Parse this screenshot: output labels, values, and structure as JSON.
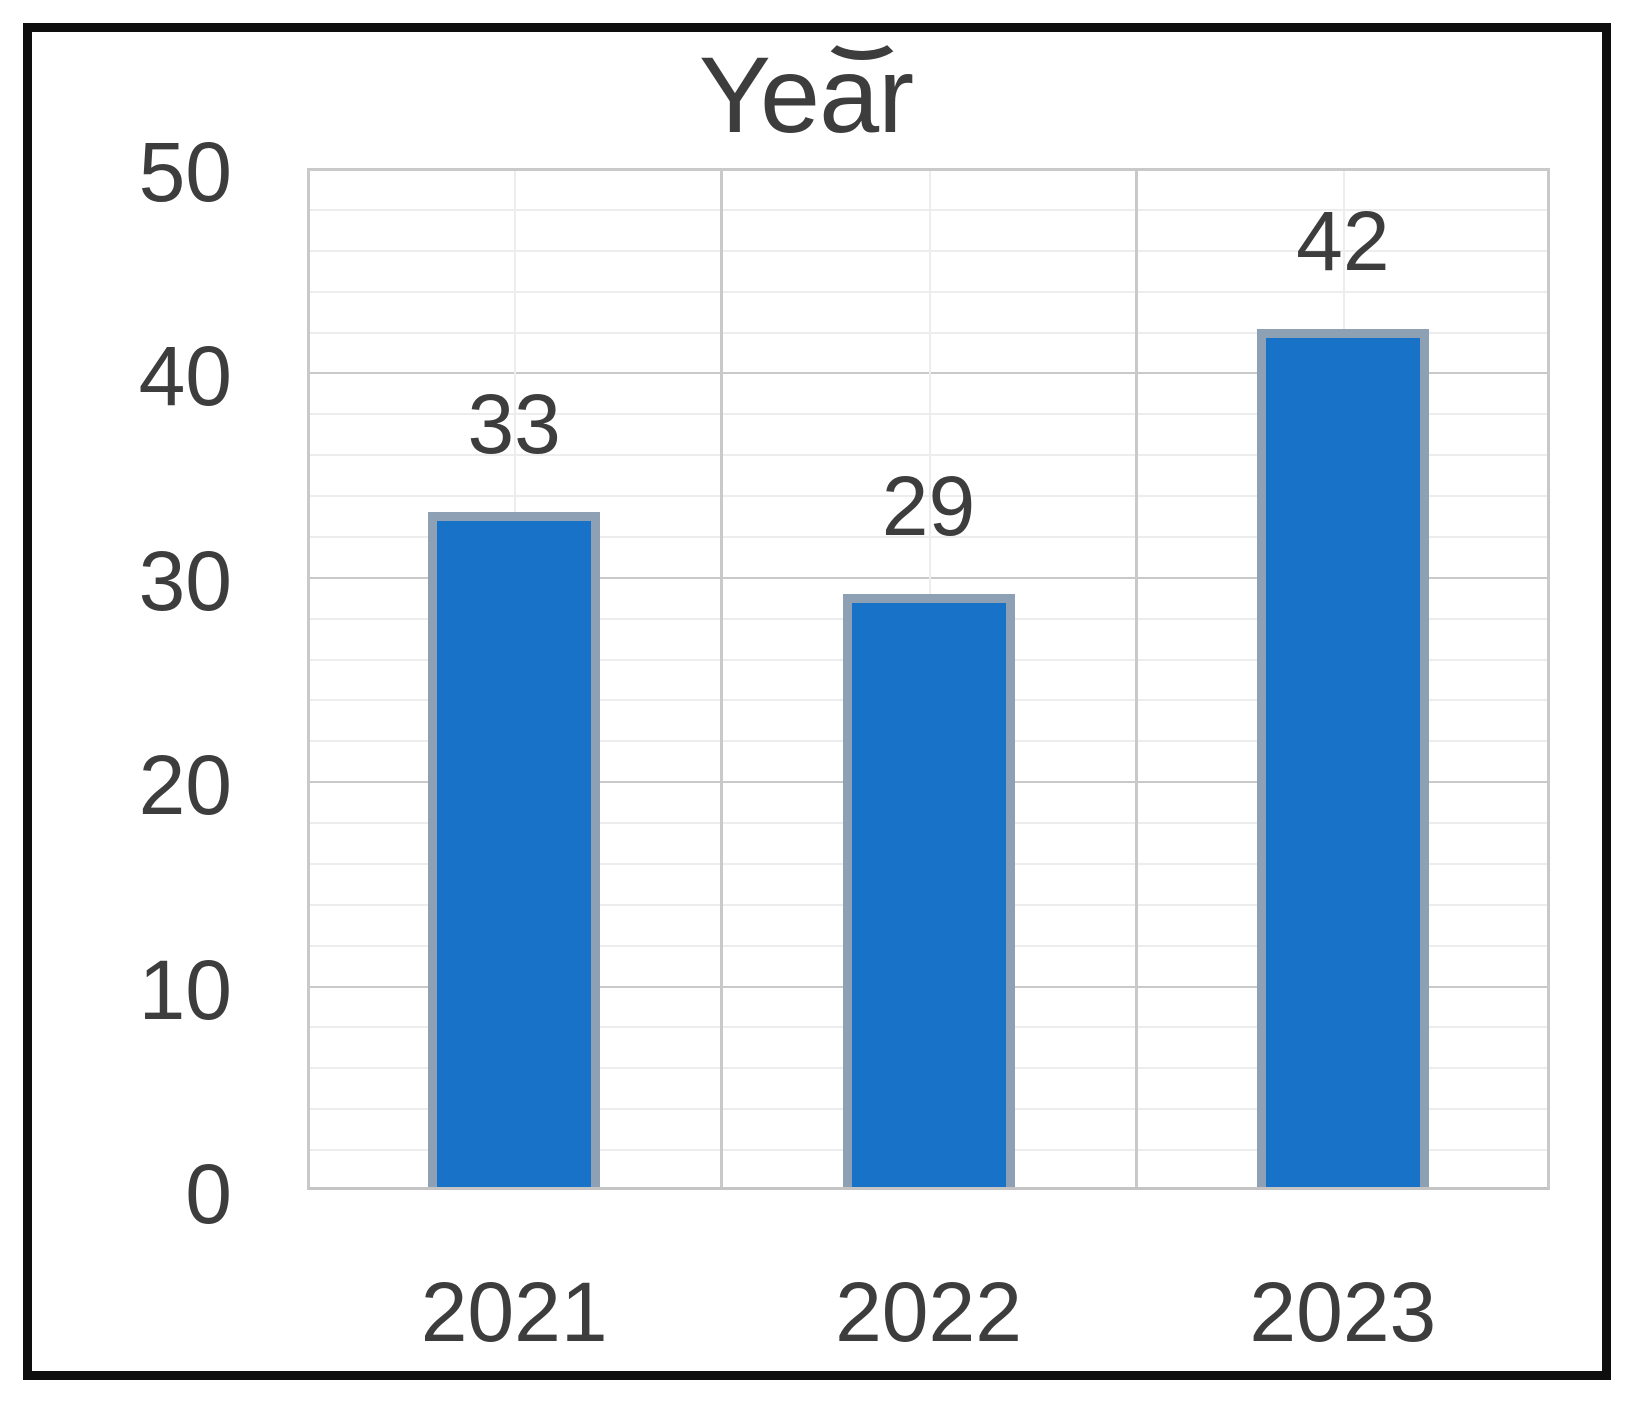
{
  "chart_data": {
    "type": "bar",
    "title": "Year",
    "clipped_title_fragment_glyph": "g",
    "categories": [
      "2021",
      "2022",
      "2023"
    ],
    "values": [
      33,
      29,
      42
    ],
    "data_labels": [
      "33",
      "29",
      "42"
    ],
    "xlabel": "",
    "ylabel": "",
    "ylim": [
      0,
      50
    ],
    "yticks": [
      "0",
      "10",
      "20",
      "30",
      "40",
      "50"
    ],
    "y_major_step": 10,
    "y_minor_step": 2,
    "grid": {
      "horizontal_major": true,
      "horizontal_minor": true,
      "vertical_major_at_category_boundaries": true,
      "vertical_minor_at_category_centers": true
    },
    "legend": "none",
    "colors": {
      "bar_fill": "#1772c8",
      "bar_stroke": "#8da0b4",
      "text": "#3d3d3d",
      "grid_major": "#c9c9c9",
      "grid_minor": "#ededed",
      "axis_line": "#c4c4c4",
      "frame": "#0e0e0e",
      "background": "#ffffff"
    }
  }
}
